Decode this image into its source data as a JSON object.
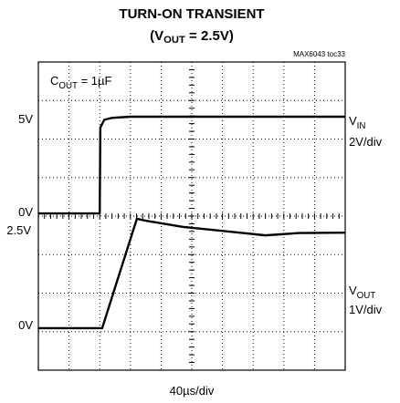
{
  "chart_data": {
    "type": "line",
    "title": "TURN-ON TRANSIENT",
    "subtitle": [
      {
        "text": "(V"
      },
      {
        "text": "OUT",
        "sub": true
      },
      {
        "text": " = 2.5V)"
      }
    ],
    "xlim": [
      0,
      10
    ],
    "ylim": [
      0,
      8
    ],
    "xticks": [
      0,
      1,
      2,
      3,
      4,
      5,
      6,
      7,
      8,
      9,
      10
    ],
    "yticks": [
      0,
      1,
      2,
      3,
      4,
      5,
      6,
      7,
      8
    ],
    "grid": true,
    "series": [
      {
        "name": "VIN",
        "color": "#000000",
        "x": [
          0,
          2.0,
          2.02,
          2.15,
          2.4,
          3,
          10
        ],
        "values": [
          4.07,
          4.07,
          6.3,
          6.5,
          6.55,
          6.58,
          6.58
        ]
      },
      {
        "name": "VOUT",
        "color": "#000000",
        "x": [
          0,
          2.08,
          3.21,
          3.5,
          4.7,
          6.2,
          7.4,
          8.5,
          10
        ],
        "values": [
          1.09,
          1.09,
          3.93,
          3.88,
          3.72,
          3.6,
          3.5,
          3.56,
          3.57
        ]
      }
    ],
    "annotations": [
      [
        {
          "text": "5V"
        }
      ],
      [
        {
          "text": "0V"
        }
      ],
      [
        {
          "text": "2.5V"
        }
      ],
      [
        {
          "text": "0V"
        }
      ],
      [
        {
          "text": "V"
        },
        {
          "text": "IN",
          "sub": true
        }
      ],
      [
        {
          "text": "2V/div"
        }
      ],
      [
        {
          "text": "V"
        },
        {
          "text": "OUT",
          "sub": true
        }
      ],
      [
        {
          "text": "1V/div"
        }
      ],
      [
        {
          "text": "C"
        },
        {
          "text": "OUT",
          "sub": true
        },
        {
          "text": " = 1µF"
        }
      ],
      [
        {
          "text": "40µs/div"
        }
      ],
      [
        {
          "text": "MAX6043 toc33"
        }
      ]
    ]
  }
}
